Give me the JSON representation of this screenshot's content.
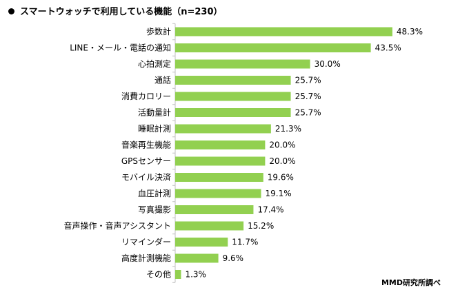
{
  "title": "スマートウォッチで利用している機能（n=230）",
  "source": "MMD研究所調べ",
  "colors": {
    "bar": "#92d050",
    "axis": "#bfbfbf",
    "text": "#000000"
  },
  "chart_data": {
    "type": "bar",
    "orientation": "horizontal",
    "title": "スマートウォッチで利用している機能（n=230）",
    "unit": "%",
    "xlim": [
      0,
      50
    ],
    "grid": false,
    "categories": [
      "歩数計",
      "LINE・メール・電話の通知",
      "心拍測定",
      "通話",
      "消費カロリー",
      "活動量計",
      "睡眠計測",
      "音楽再生機能",
      "GPSセンサー",
      "モバイル決済",
      "血圧計測",
      "写真撮影",
      "音声操作・音声アシスタント",
      "リマインダー",
      "高度計測機能",
      "その他"
    ],
    "values": [
      48.3,
      43.5,
      30.0,
      25.7,
      25.7,
      25.7,
      21.3,
      20.0,
      20.0,
      19.6,
      19.1,
      17.4,
      15.2,
      11.7,
      9.6,
      1.3
    ],
    "value_labels": [
      "48.3%",
      "43.5%",
      "30.0%",
      "25.7%",
      "25.7%",
      "25.7%",
      "21.3%",
      "20.0%",
      "20.0%",
      "19.6%",
      "19.1%",
      "17.4%",
      "15.2%",
      "11.7%",
      "9.6%",
      "1.3%"
    ]
  }
}
